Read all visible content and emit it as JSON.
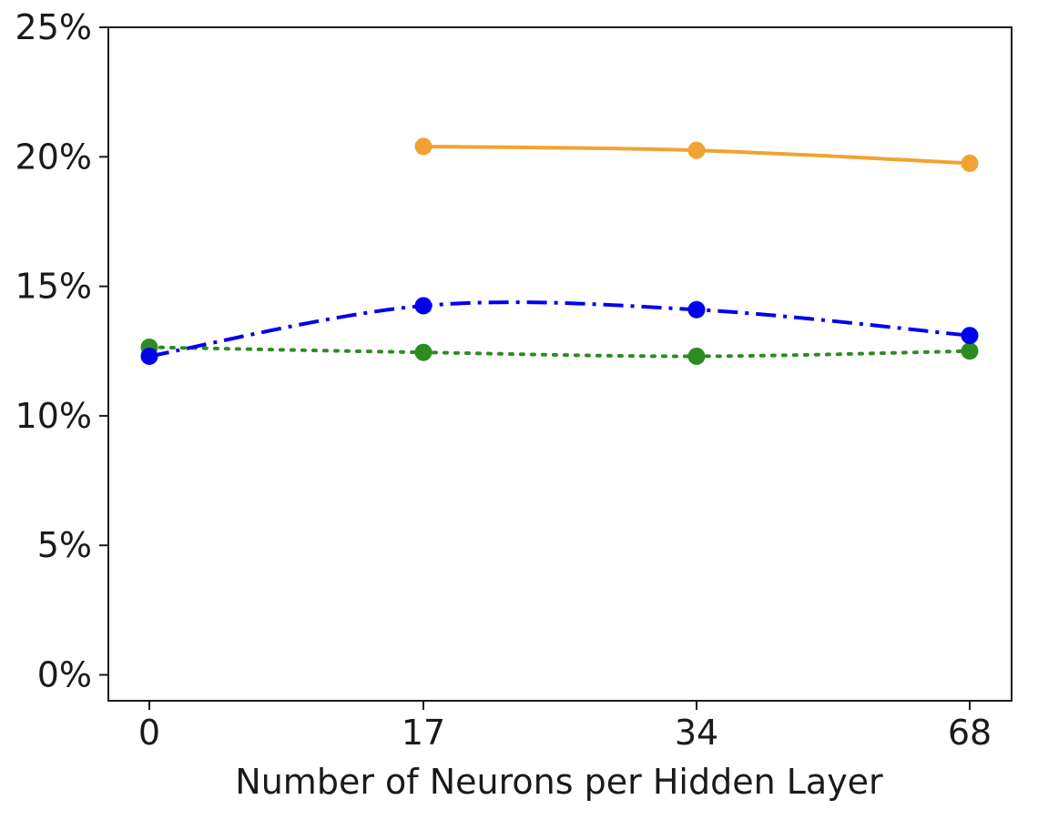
{
  "chart_data": {
    "type": "line",
    "title": "",
    "xlabel": "Number of Neurons per Hidden Layer",
    "ylabel": "",
    "categories": [
      "0",
      "17",
      "34",
      "68"
    ],
    "ylim": [
      -1,
      25
    ],
    "yticks": [
      0,
      5,
      10,
      15,
      20,
      25
    ],
    "ytick_labels": [
      "0%",
      "5%",
      "10%",
      "15%",
      "20%",
      "25%"
    ],
    "grid": false,
    "series": [
      {
        "color": "#f2a232",
        "line_style": "solid",
        "values": [
          null,
          20.4,
          20.25,
          19.75
        ]
      },
      {
        "color": "#0000ee",
        "line_style": "dash-dot",
        "values": [
          12.3,
          14.25,
          14.1,
          13.1
        ]
      },
      {
        "color": "#2e8b22",
        "line_style": "dotted",
        "values": [
          12.65,
          12.45,
          12.3,
          12.5
        ]
      }
    ]
  }
}
